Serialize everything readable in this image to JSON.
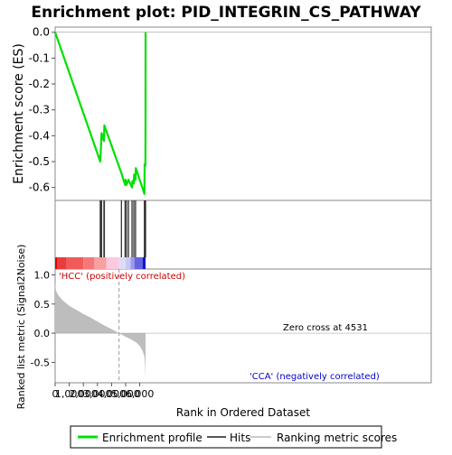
{
  "chart_data": {
    "type": "line",
    "title": "Enrichment plot: PID_INTEGRIN_CS_PATHWAY",
    "xlabel": "Rank in Ordered Dataset",
    "ylabel_top": "Enrichment score (ES)",
    "ylabel_bottom": "Ranked list metric (Signal2Noise)",
    "x_range": [
      0,
      6400
    ],
    "x_ticks": [
      0,
      1000,
      2000,
      3000,
      4000,
      5000,
      6000
    ],
    "x_tick_labels": [
      "0",
      "1,000",
      "2,000",
      "3,000",
      "4,000",
      "5,000",
      "6,000"
    ],
    "es_range": [
      -0.65,
      0.02
    ],
    "es_ticks": [
      0.0,
      -0.1,
      -0.2,
      -0.3,
      -0.4,
      -0.5,
      -0.6
    ],
    "es_tick_labels": [
      "0.0",
      "-0.1",
      "-0.2",
      "-0.3",
      "-0.4",
      "-0.5",
      "-0.6"
    ],
    "metric_range": [
      -0.85,
      1.1
    ],
    "metric_ticks": [
      1.0,
      0.5,
      0.0,
      -0.5
    ],
    "metric_tick_labels": [
      "1.0",
      "0.5",
      "0.0",
      "-0.5"
    ],
    "enrichment_profile": [
      [
        0,
        0.0
      ],
      [
        3200,
        -0.5
      ],
      [
        3230,
        -0.465
      ],
      [
        3260,
        -0.43
      ],
      [
        3290,
        -0.39
      ],
      [
        3460,
        -0.42
      ],
      [
        3490,
        -0.36
      ],
      [
        4700,
        -0.545
      ],
      [
        4960,
        -0.59
      ],
      [
        4990,
        -0.57
      ],
      [
        5060,
        -0.59
      ],
      [
        5200,
        -0.57
      ],
      [
        5450,
        -0.6
      ],
      [
        5480,
        -0.575
      ],
      [
        5580,
        -0.585
      ],
      [
        5600,
        -0.55
      ],
      [
        5700,
        -0.57
      ],
      [
        5720,
        -0.525
      ],
      [
        6330,
        -0.625
      ],
      [
        6345,
        -0.51
      ],
      [
        6400,
        -0.515
      ],
      [
        6408,
        -0.37
      ],
      [
        6412,
        0.0
      ]
    ],
    "hits": [
      3200,
      3230,
      3260,
      3290,
      3460,
      3490,
      4700,
      4960,
      5060,
      5200,
      5450,
      5580,
      5700,
      6330,
      6345,
      6400,
      6412
    ],
    "metric_curve": [
      [
        0,
        0.9
      ],
      [
        30,
        0.78
      ],
      [
        80,
        0.72
      ],
      [
        200,
        0.66
      ],
      [
        500,
        0.57
      ],
      [
        1000,
        0.47
      ],
      [
        1500,
        0.4
      ],
      [
        2000,
        0.33
      ],
      [
        2500,
        0.27
      ],
      [
        3000,
        0.2
      ],
      [
        3500,
        0.13
      ],
      [
        4000,
        0.07
      ],
      [
        4300,
        0.03
      ],
      [
        4531,
        0.0
      ],
      [
        5000,
        -0.06
      ],
      [
        5500,
        -0.12
      ],
      [
        5800,
        -0.17
      ],
      [
        6000,
        -0.22
      ],
      [
        6200,
        -0.3
      ],
      [
        6330,
        -0.4
      ],
      [
        6380,
        -0.55
      ],
      [
        6412,
        -0.8
      ]
    ],
    "zero_cross": 4531,
    "zero_cross_label": "Zero cross at 4531",
    "pos_label": "'HCC' (positively correlated)",
    "neg_label": "'CCA' (negatively correlated)",
    "heat_segments": [
      {
        "from": 0,
        "to": 130,
        "color": "#e60000"
      },
      {
        "from": 130,
        "to": 820,
        "color": "#ea3c3c"
      },
      {
        "from": 820,
        "to": 2000,
        "color": "#f05a5a"
      },
      {
        "from": 2000,
        "to": 2780,
        "color": "#f57878"
      },
      {
        "from": 2780,
        "to": 3620,
        "color": "#f8a0a0"
      },
      {
        "from": 3620,
        "to": 4531,
        "color": "#fcc8e0"
      },
      {
        "from": 4531,
        "to": 5000,
        "color": "#dcdcf8"
      },
      {
        "from": 5000,
        "to": 5350,
        "color": "#c8c8f4"
      },
      {
        "from": 5350,
        "to": 5620,
        "color": "#9a9aec"
      },
      {
        "from": 5620,
        "to": 6200,
        "color": "#6464e0"
      },
      {
        "from": 6200,
        "to": 6412,
        "color": "#1414c8"
      }
    ],
    "legend": [
      {
        "label": "Enrichment profile",
        "color": "#00e000"
      },
      {
        "label": "Hits",
        "color": "#555555"
      },
      {
        "label": "Ranking metric scores",
        "color": "#cccccc"
      }
    ]
  }
}
